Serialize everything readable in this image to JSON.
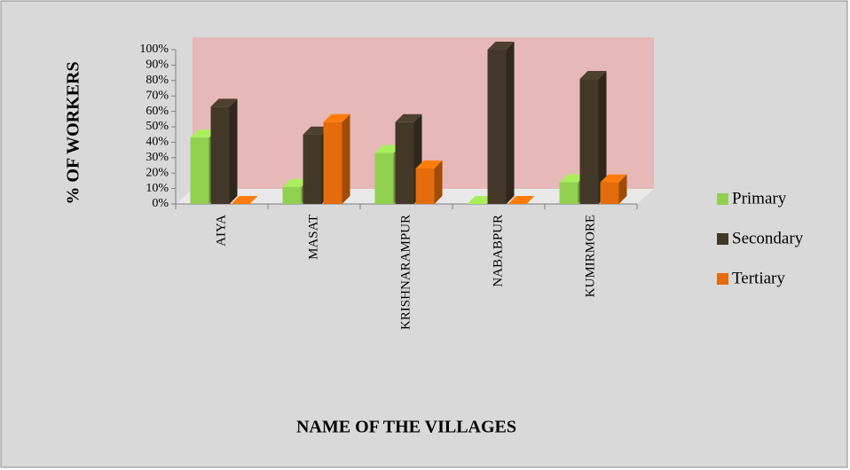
{
  "chart_data": {
    "type": "bar3d",
    "y_label": "% OF WORKERS",
    "x_label": "NAME OF THE VILLAGES",
    "categories": [
      "AIYA",
      "MASAT",
      "KRISHNARAMPUR",
      "NABABPUR",
      "KUMIRMORE"
    ],
    "series": [
      {
        "name": "Primary",
        "color": "#92d050",
        "values": [
          43,
          11,
          33,
          0,
          14
        ]
      },
      {
        "name": "Secondary",
        "color": "#433828",
        "values": [
          63,
          45,
          53,
          100,
          81
        ]
      },
      {
        "name": "Tertiary",
        "color": "#e46c0a",
        "values": [
          0,
          53,
          23,
          0,
          14
        ]
      }
    ],
    "ylim": [
      0,
      100
    ],
    "yticks": [
      {
        "value": 0,
        "label": "0%"
      },
      {
        "value": 10,
        "label": "10%"
      },
      {
        "value": 20,
        "label": "20%"
      },
      {
        "value": 30,
        "label": "30%"
      },
      {
        "value": 40,
        "label": "40%"
      },
      {
        "value": 50,
        "label": "50%"
      },
      {
        "value": 60,
        "label": "60%"
      },
      {
        "value": 70,
        "label": "70%"
      },
      {
        "value": 80,
        "label": "80%"
      },
      {
        "value": 90,
        "label": "90%"
      },
      {
        "value": 100,
        "label": "100%"
      }
    ],
    "legend": "right"
  }
}
